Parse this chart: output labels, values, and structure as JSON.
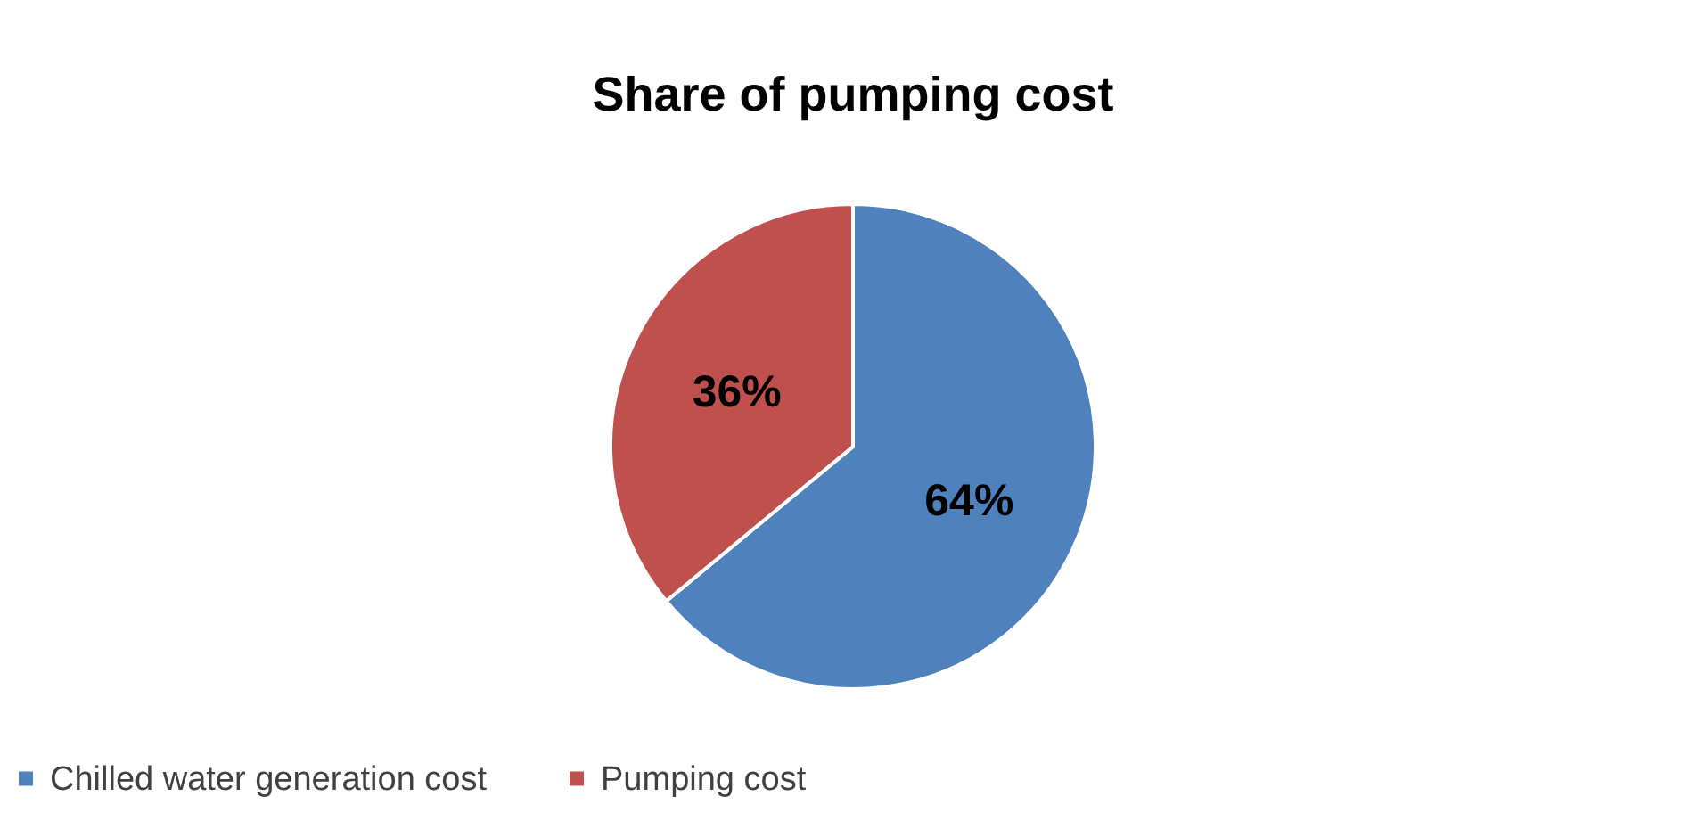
{
  "chart_data": {
    "type": "pie",
    "title": "Share of pumping cost",
    "categories": [
      "Chilled water generation cost",
      "Pumping cost"
    ],
    "values": [
      64,
      36
    ],
    "colors": [
      "#4f81bd",
      "#c0504d"
    ],
    "value_labels": [
      "64%",
      "36%"
    ],
    "legend": "bottom"
  }
}
